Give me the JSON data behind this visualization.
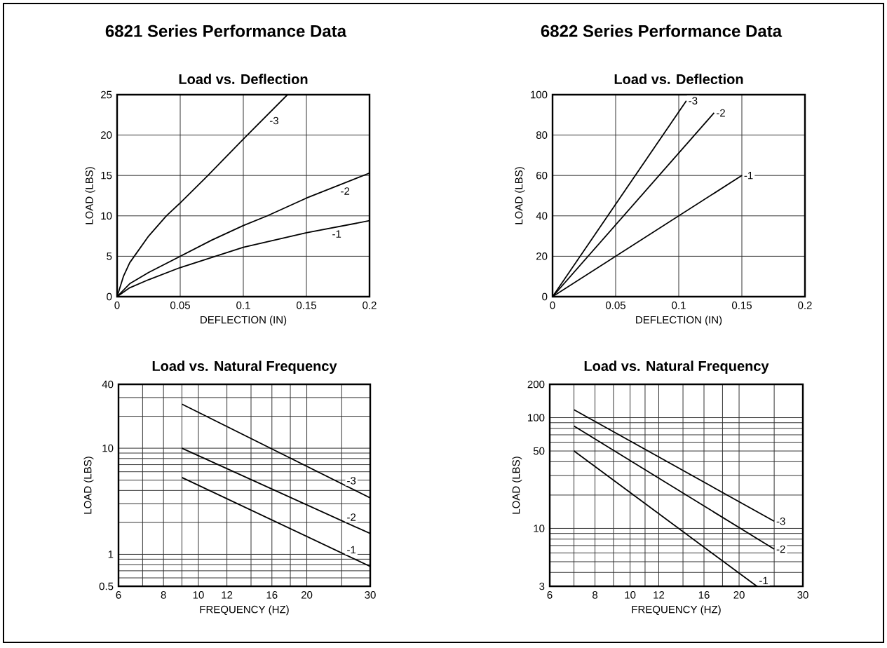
{
  "chart_data": [
    {
      "type": "line",
      "title": "6821 Series Performance Data",
      "subtitle": "Load vs. Deflection",
      "xlabel": "DEFLECTION (IN)",
      "ylabel": "LOAD (LBS)",
      "xlim": [
        0,
        0.2
      ],
      "ylim": [
        0,
        25
      ],
      "xticks": [
        0,
        0.05,
        0.1,
        0.15,
        0.2
      ],
      "yticks": [
        0,
        5,
        10,
        15,
        20,
        25
      ],
      "grid": true,
      "series": [
        {
          "name": "-1",
          "color": "#000000",
          "x": [
            0,
            0.01,
            0.025,
            0.05,
            0.078,
            0.1,
            0.15,
            0.2
          ],
          "values": [
            0,
            1.1,
            2.1,
            3.6,
            5,
            6.1,
            7.9,
            9.4
          ]
        },
        {
          "name": "-2",
          "color": "#000000",
          "x": [
            0,
            0.01,
            0.025,
            0.05,
            0.075,
            0.1,
            0.119,
            0.15,
            0.2
          ],
          "values": [
            0,
            1.6,
            3,
            5,
            7,
            8.8,
            10,
            12.2,
            15.3
          ]
        },
        {
          "name": "-3",
          "color": "#000000",
          "x": [
            0,
            0.005,
            0.01,
            0.015,
            0.025,
            0.039,
            0.05,
            0.072,
            0.1,
            0.135
          ],
          "values": [
            0,
            2.5,
            4.2,
            5.3,
            7.5,
            10,
            11.6,
            15,
            19.5,
            25
          ]
        }
      ]
    },
    {
      "type": "line",
      "title": "6822 Series Performance Data",
      "subtitle": "Load vs. Deflection",
      "xlabel": "DEFLECTION (IN)",
      "ylabel": "LOAD (LBS)",
      "xlim": [
        0,
        0.2
      ],
      "ylim": [
        0,
        100
      ],
      "xticks": [
        0,
        0.05,
        0.1,
        0.15,
        0.2
      ],
      "yticks": [
        0,
        20,
        40,
        60,
        80,
        100
      ],
      "grid": true,
      "series": [
        {
          "name": "-1",
          "color": "#000000",
          "x": [
            0,
            0.15
          ],
          "values": [
            0,
            60
          ]
        },
        {
          "name": "-2",
          "color": "#000000",
          "x": [
            0,
            0.128
          ],
          "values": [
            0,
            91
          ]
        },
        {
          "name": "-3",
          "color": "#000000",
          "x": [
            0,
            0.106
          ],
          "values": [
            0,
            97
          ]
        }
      ]
    },
    {
      "type": "line",
      "title": "Load vs. Natural Frequency",
      "xlabel": "FREQUENCY (HZ)",
      "ylabel": "LOAD (LBS)",
      "log": "xy",
      "xlim": [
        6,
        30
      ],
      "ylim": [
        0.5,
        40
      ],
      "xticks": [
        6,
        {
          "value": 7,
          "label": null
        },
        8,
        {
          "value": 9,
          "label": null
        },
        10,
        12,
        {
          "value": 14,
          "label": null
        },
        16,
        {
          "value": 18,
          "label": null
        },
        20,
        {
          "value": 25,
          "label": null
        },
        30
      ],
      "yticks": [
        0.5,
        {
          "value": 0.6,
          "label": null
        },
        {
          "value": 0.7,
          "label": null
        },
        {
          "value": 0.8,
          "label": null
        },
        {
          "value": 0.9,
          "label": null
        },
        1,
        {
          "value": 2,
          "label": null
        },
        {
          "value": 3,
          "label": null
        },
        {
          "value": 4,
          "label": null
        },
        {
          "value": 5,
          "label": null
        },
        {
          "value": 6,
          "label": null
        },
        {
          "value": 7,
          "label": null
        },
        {
          "value": 8,
          "label": null
        },
        {
          "value": 9,
          "label": null
        },
        10,
        {
          "value": 20,
          "label": null
        },
        {
          "value": 30,
          "label": null
        },
        40
      ],
      "grid": true,
      "series": [
        {
          "name": "-1",
          "color": "#000000",
          "x": [
            9,
            30
          ],
          "values": [
            5.3,
            0.77
          ]
        },
        {
          "name": "-2",
          "color": "#000000",
          "x": [
            9,
            30
          ],
          "values": [
            10,
            1.57
          ]
        },
        {
          "name": "-3",
          "color": "#000000",
          "x": [
            9,
            30
          ],
          "values": [
            26,
            3.4
          ]
        }
      ]
    },
    {
      "type": "line",
      "title": "Load vs. Natural Frequency",
      "xlabel": "FREQUENCY (HZ)",
      "ylabel": "LOAD (LBS)",
      "log": "xy",
      "xlim": [
        6,
        30
      ],
      "ylim": [
        3,
        200
      ],
      "xticks": [
        6,
        {
          "value": 7,
          "label": null
        },
        8,
        {
          "value": 9,
          "label": null
        },
        10,
        {
          "value": 11,
          "label": null
        },
        12,
        {
          "value": 14,
          "label": null
        },
        16,
        {
          "value": 18,
          "label": null
        },
        20,
        {
          "value": 25,
          "label": null
        },
        30
      ],
      "yticks": [
        3,
        {
          "value": 4,
          "label": null
        },
        {
          "value": 5,
          "label": null
        },
        {
          "value": 6,
          "label": null
        },
        {
          "value": 7,
          "label": null
        },
        {
          "value": 8,
          "label": null
        },
        {
          "value": 9,
          "label": null
        },
        10,
        {
          "value": 20,
          "label": null
        },
        {
          "value": 30,
          "label": null
        },
        {
          "value": 40,
          "label": null
        },
        50,
        {
          "value": 60,
          "label": null
        },
        {
          "value": 70,
          "label": null
        },
        {
          "value": 80,
          "label": null
        },
        {
          "value": 90,
          "label": null
        },
        100,
        200
      ],
      "grid": true,
      "series": [
        {
          "name": "-1",
          "color": "#000000",
          "x": [
            7,
            22.4
          ],
          "values": [
            50,
            3
          ]
        },
        {
          "name": "-2",
          "color": "#000000",
          "x": [
            7,
            25
          ],
          "values": [
            84,
            6.5
          ]
        },
        {
          "name": "-3",
          "color": "#000000",
          "x": [
            7,
            25
          ],
          "values": [
            118,
            11.6
          ]
        }
      ]
    }
  ]
}
